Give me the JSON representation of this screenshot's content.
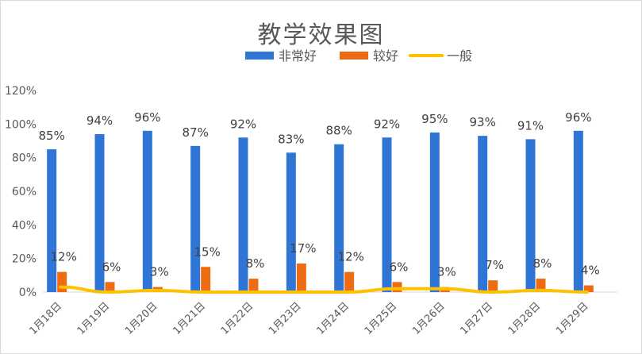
{
  "chart_data": {
    "type": "bar",
    "title": "教学效果图",
    "categories": [
      "1月18日",
      "1月19日",
      "1月20日",
      "1月21日",
      "1月22日",
      "1月23日",
      "1月24日",
      "1月25日",
      "1月26日",
      "1月27日",
      "1月28日",
      "1月29日"
    ],
    "series": [
      {
        "name": "非常好",
        "type": "bar",
        "color": "#2e75d6",
        "values": [
          0.85,
          0.94,
          0.96,
          0.87,
          0.92,
          0.83,
          0.88,
          0.92,
          0.95,
          0.93,
          0.91,
          0.96
        ],
        "labels": [
          "85%",
          "94%",
          "96%",
          "87%",
          "92%",
          "83%",
          "88%",
          "92%",
          "95%",
          "93%",
          "91%",
          "96%"
        ]
      },
      {
        "name": "较好",
        "type": "bar",
        "color": "#ed6c13",
        "values": [
          0.12,
          0.06,
          0.03,
          0.15,
          0.08,
          0.17,
          0.12,
          0.06,
          0.03,
          0.07,
          0.08,
          0.04
        ],
        "labels": [
          "12%",
          "6%",
          "3%",
          "15%",
          "8%",
          "17%",
          "12%",
          "6%",
          "3%",
          "7%",
          "8%",
          "4%"
        ]
      },
      {
        "name": "一般",
        "type": "line",
        "color": "#ffc000",
        "values": [
          0.03,
          0.0,
          0.01,
          0.0,
          0.0,
          0.0,
          0.0,
          0.02,
          0.02,
          0.0,
          0.01,
          0.0
        ]
      }
    ],
    "ylim": [
      0,
      1.2
    ],
    "yticks": [
      "0%",
      "20%",
      "40%",
      "60%",
      "80%",
      "100%",
      "120%"
    ],
    "grid": false,
    "legend": "top"
  }
}
